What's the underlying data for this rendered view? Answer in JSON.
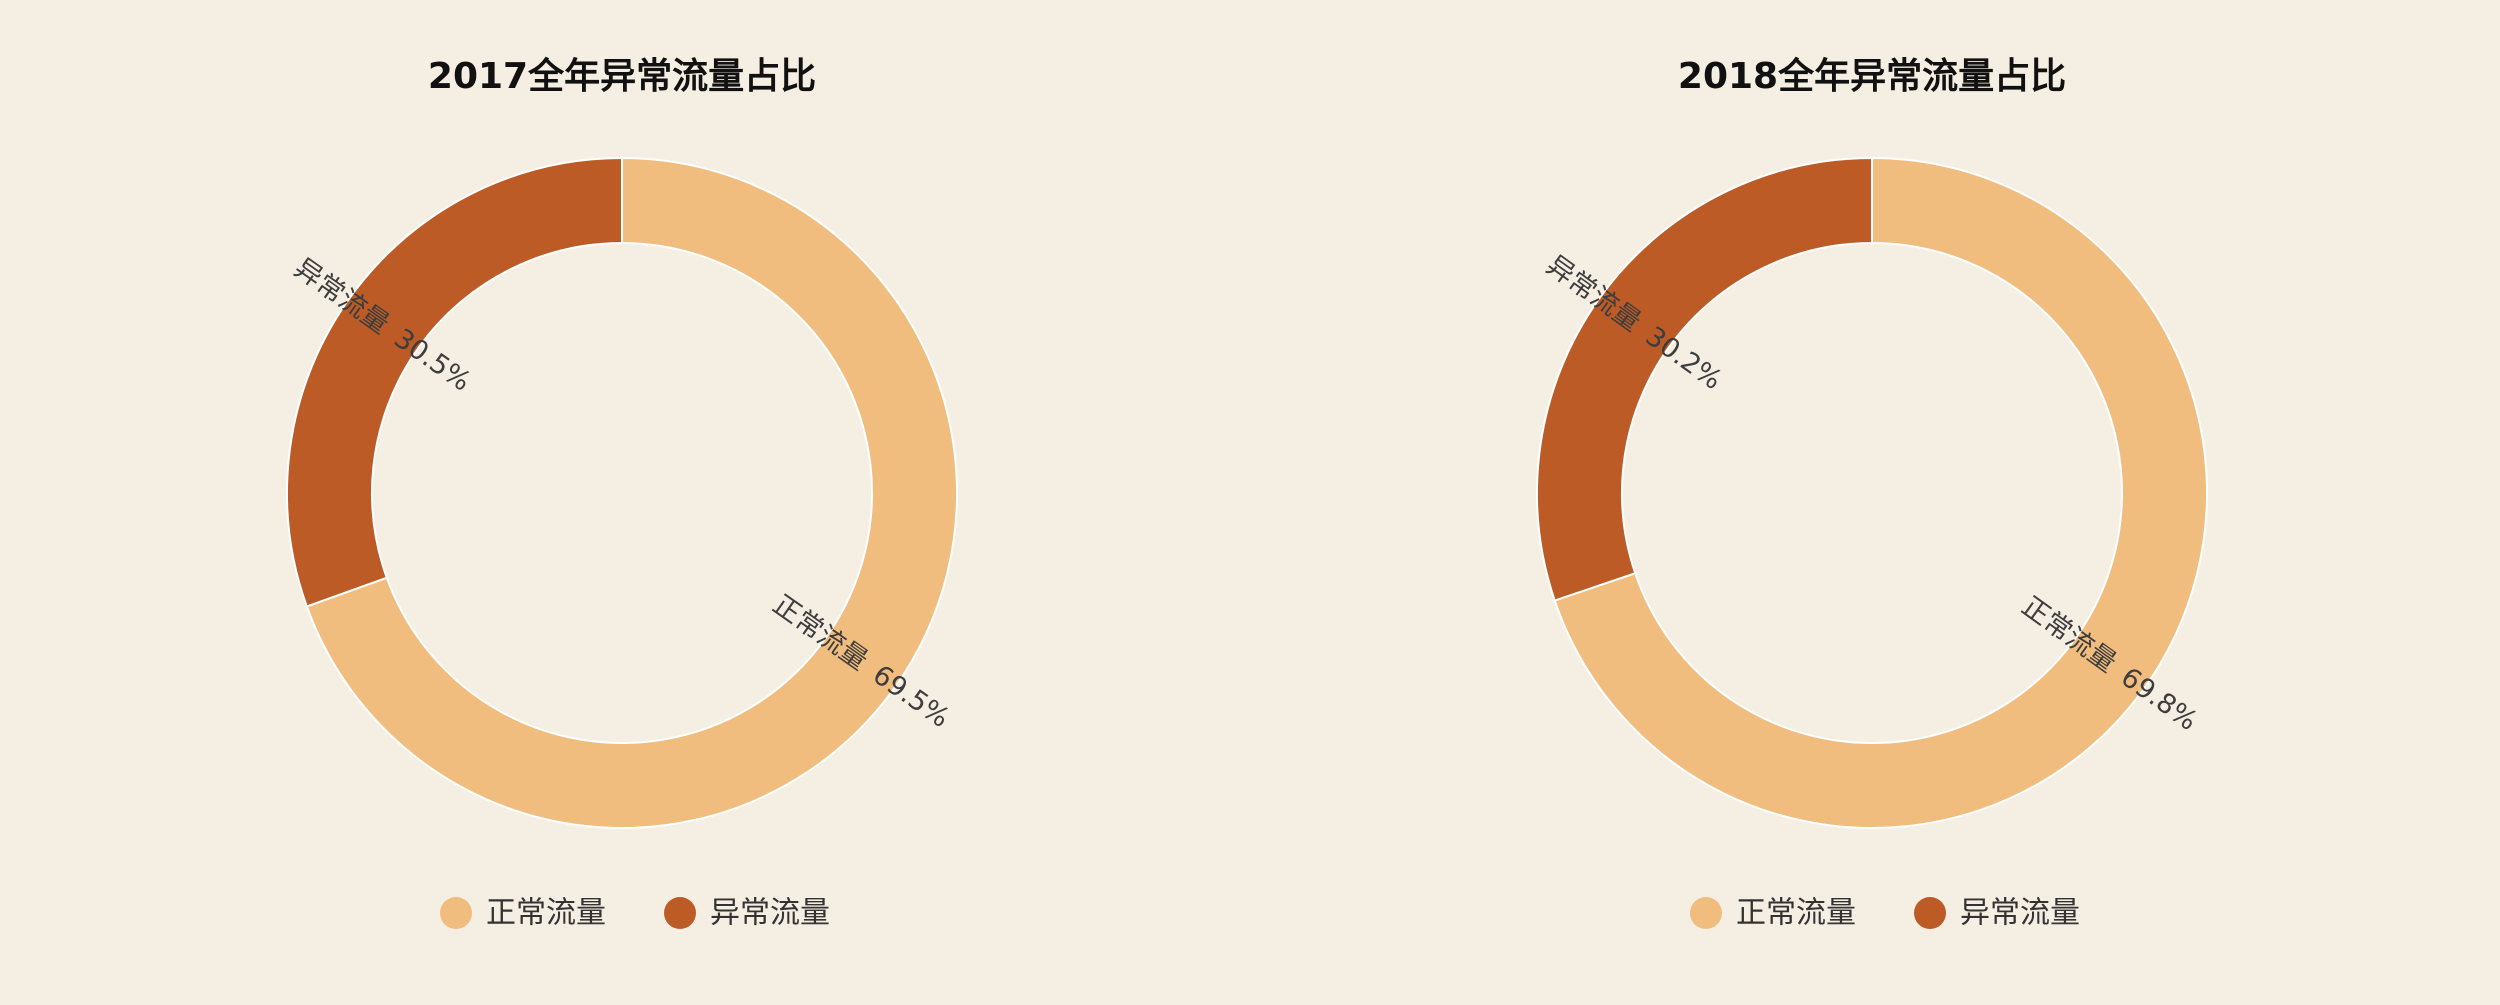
{
  "chart_data": [
    {
      "type": "pie",
      "title": "2017全年异常流量占比",
      "series": [
        {
          "name": "正常流量",
          "value": 69.5,
          "label": "69.5%",
          "color": "#f1bd7e"
        },
        {
          "name": "异常流量",
          "value": 30.5,
          "label": "30.5%",
          "color": "#bd5b27"
        }
      ],
      "legend": {
        "position": "bottom",
        "items": [
          "正常流量",
          "异常流量"
        ]
      }
    },
    {
      "type": "pie",
      "title": "2018全年异常流量占比",
      "series": [
        {
          "name": "正常流量",
          "value": 69.8,
          "label": "69.8%",
          "color": "#f1bd7e"
        },
        {
          "name": "异常流量",
          "value": 30.2,
          "label": "30.2%",
          "color": "#bd5b27"
        }
      ],
      "legend": {
        "position": "bottom",
        "items": [
          "正常流量",
          "异常流量"
        ]
      }
    }
  ],
  "colors": {
    "background": "#f5eee3",
    "title": "#111111",
    "label": "#3d3d3d",
    "legend_text": "#333333"
  }
}
